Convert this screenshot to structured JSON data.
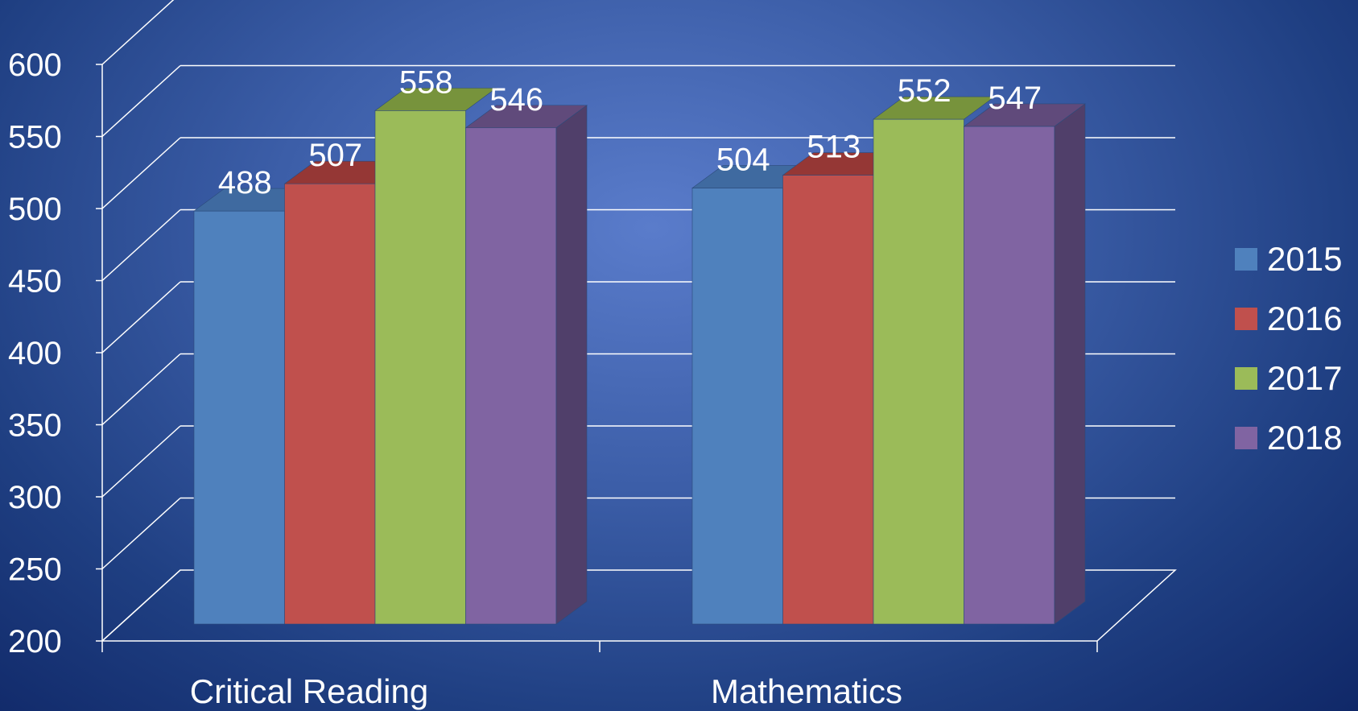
{
  "chart_data": {
    "type": "bar",
    "categories": [
      "Critical Reading",
      "Mathematics"
    ],
    "series": [
      {
        "name": "2015",
        "values": [
          488,
          504
        ],
        "color": "#4f81bd",
        "top": "#3f6aa0",
        "side": "#365f91"
      },
      {
        "name": "2016",
        "values": [
          507,
          513
        ],
        "color": "#c0504d",
        "top": "#953735",
        "side": "#8b3a38"
      },
      {
        "name": "2017",
        "values": [
          558,
          552
        ],
        "color": "#9bbb59",
        "top": "#77933c",
        "side": "#6f8b3a"
      },
      {
        "name": "2018",
        "values": [
          546,
          547
        ],
        "color": "#8064a2",
        "top": "#604a7b",
        "side": "#503f6a"
      }
    ],
    "yticks": [
      200,
      250,
      300,
      350,
      400,
      450,
      500,
      550,
      600
    ],
    "ylim": [
      200,
      600
    ],
    "grid": true,
    "legend": "right",
    "style": "3d-clustered-column"
  }
}
